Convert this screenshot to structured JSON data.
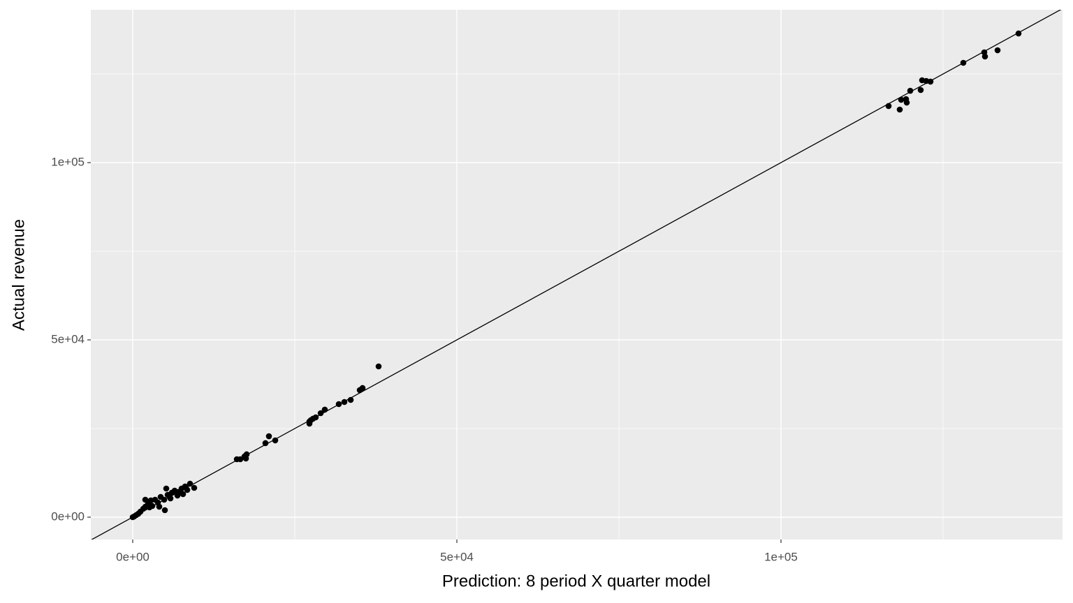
{
  "chart_data": {
    "type": "scatter",
    "x_label": "Prediction: 8 period X quarter model",
    "y_label": "Actual revenue",
    "color": "#000000",
    "background": "#ebebeb",
    "grid": true,
    "reference_line": {
      "slope": 1,
      "intercept": 0
    },
    "xlim": [
      -6466,
      143430
    ],
    "ylim": [
      -6299,
      143110
    ],
    "xticks": [
      {
        "value": 0,
        "label": "0e+00"
      },
      {
        "value": 50000,
        "label": "5e+04"
      },
      {
        "value": 100000,
        "label": "1e+05"
      }
    ],
    "yticks": [
      {
        "value": 0,
        "label": "0e+00"
      },
      {
        "value": 50000,
        "label": "5e+04"
      },
      {
        "value": 100000,
        "label": "1e+05"
      }
    ],
    "x_minor_grid": [
      25000,
      75000,
      125000
    ],
    "y_minor_grid": [
      25000,
      75000,
      125000
    ],
    "x": [
      116600,
      118320,
      118540,
      119290,
      119400,
      119940,
      121550,
      121770,
      122410,
      123060,
      128130,
      131360,
      131470,
      133410,
      136640,
      37930,
      35450,
      35020,
      33620,
      32650,
      31790,
      29630,
      28990,
      28230,
      27800,
      27260,
      27260,
      27480,
      21980,
      21010,
      20470,
      17570,
      17460,
      17240,
      16590,
      16060,
      9480,
      8840,
      8410,
      8080,
      7540,
      7110,
      6470,
      6030,
      5390,
      5170,
      4850,
      4960,
      4310,
      3880,
      3450,
      3020,
      2800,
      2370,
      1940,
      1940,
      1620,
      1190,
      860,
      540,
      220,
      0,
      5820,
      6900,
      7760,
      4090,
      2590
    ],
    "y": [
      115950,
      114960,
      117720,
      117910,
      116930,
      120270,
      120470,
      123230,
      123030,
      122840,
      128150,
      131100,
      129920,
      131690,
      136420,
      42520,
      36420,
      35830,
      33070,
      32480,
      31890,
      30320,
      29330,
      28150,
      27760,
      26970,
      26380,
      27360,
      21650,
      22830,
      20870,
      17720,
      16540,
      17130,
      16340,
      16340,
      8270,
      9450,
      7680,
      8660,
      8070,
      7090,
      7480,
      6890,
      6300,
      8070,
      4920,
      1970,
      5710,
      4130,
      4920,
      3150,
      4720,
      3740,
      4920,
      2950,
      2360,
      1570,
      980,
      590,
      200,
      0,
      5310,
      6100,
      6500,
      2950,
      2760
    ]
  }
}
